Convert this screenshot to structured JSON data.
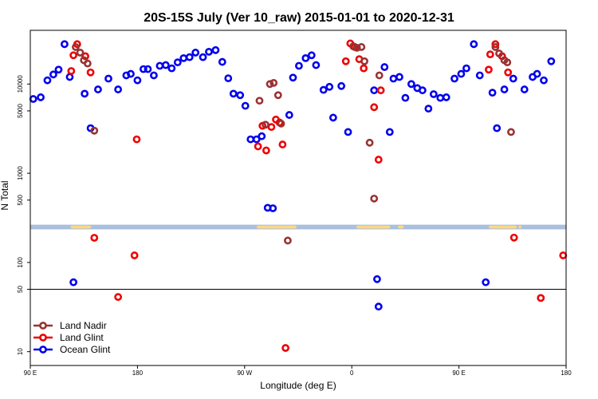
{
  "chart_data": {
    "type": "scatter",
    "title": "20S-15S July (Ver 10_raw)   2015-01-01 to 2020-12-31",
    "xlabel": "Longitude (deg E)",
    "ylabel": "N Total",
    "xlim": [
      90,
      450
    ],
    "ylim": [
      7,
      40000
    ],
    "y_scale": "log",
    "grid": false,
    "legend_placement": "bottom-left",
    "x_ticks": [
      {
        "value": 90,
        "label": "90 E"
      },
      {
        "value": 162,
        "label": "180"
      },
      {
        "value": 234,
        "label": "90 W"
      },
      {
        "value": 306,
        "label": "0"
      },
      {
        "value": 378,
        "label": "90 E"
      },
      {
        "value": 450,
        "label": "180"
      }
    ],
    "y_ticks": [
      {
        "value": 10,
        "label": "10"
      },
      {
        "value": 50,
        "label": "50"
      },
      {
        "value": 100,
        "label": "100"
      },
      {
        "value": 500,
        "label": "500"
      },
      {
        "value": 1000,
        "label": "1000"
      },
      {
        "value": 5000,
        "label": "5000"
      },
      {
        "value": 10000,
        "label": "10000"
      }
    ],
    "reference_line_y": 50,
    "land_sea_band": {
      "y_range": [
        235,
        265
      ],
      "ocean_color": "#a9bfdd",
      "land_color": "#fcd882",
      "land_x_ranges": [
        [
          117,
          131
        ],
        [
          242,
          269
        ],
        [
          309,
          332
        ],
        [
          337,
          341
        ],
        [
          398,
          417
        ],
        [
          418,
          420
        ]
      ]
    },
    "series": [
      {
        "name": "Land Nadir",
        "color": "#993333",
        "points": [
          [
            120.5,
            26000
          ],
          [
            123.5,
            22500
          ],
          [
            126,
            18500
          ],
          [
            128.5,
            17000
          ],
          [
            133,
            3000
          ],
          [
            244,
            6500
          ],
          [
            248,
            3500
          ],
          [
            251,
            10000
          ],
          [
            253.5,
            10300
          ],
          [
            256.5,
            7500
          ],
          [
            258.5,
            3600
          ],
          [
            263,
            176
          ],
          [
            307,
            26500
          ],
          [
            309.5,
            25500
          ],
          [
            312.5,
            26000
          ],
          [
            314.5,
            18000
          ],
          [
            318,
            2200
          ],
          [
            321,
            520
          ],
          [
            324.5,
            12500
          ],
          [
            402.5,
            26000
          ],
          [
            405,
            22000
          ],
          [
            408.5,
            18500
          ],
          [
            410.5,
            17500
          ],
          [
            413,
            2900
          ]
        ]
      },
      {
        "name": "Land Glint",
        "color": "#ee0000",
        "points": [
          [
            117.5,
            14000
          ],
          [
            119,
            21000
          ],
          [
            121.5,
            28000
          ],
          [
            127,
            20500
          ],
          [
            130.5,
            13500
          ],
          [
            133,
            189
          ],
          [
            149,
            41
          ],
          [
            160,
            120
          ],
          [
            161.5,
            2400
          ],
          [
            243,
            2000
          ],
          [
            246,
            3400
          ],
          [
            248.5,
            1800
          ],
          [
            252,
            3300
          ],
          [
            255,
            4000
          ],
          [
            257.5,
            3700
          ],
          [
            259.5,
            2100
          ],
          [
            261.5,
            11
          ],
          [
            302,
            18000
          ],
          [
            305,
            28500
          ],
          [
            308,
            26000
          ],
          [
            311,
            19000
          ],
          [
            314,
            15000
          ],
          [
            321,
            5500
          ],
          [
            324,
            1420
          ],
          [
            325.5,
            8500
          ],
          [
            398,
            14500
          ],
          [
            399,
            21500
          ],
          [
            402.5,
            28000
          ],
          [
            407,
            20500
          ],
          [
            411,
            13500
          ],
          [
            415,
            190
          ],
          [
            433,
            40
          ],
          [
            448,
            120
          ]
        ]
      },
      {
        "name": "Ocean Glint",
        "color": "#0000ee",
        "points": [
          [
            92,
            6800
          ],
          [
            97,
            7100
          ],
          [
            101.5,
            11000
          ],
          [
            105.5,
            12800
          ],
          [
            109,
            14500
          ],
          [
            113,
            28000
          ],
          [
            116.5,
            12000
          ],
          [
            119,
            60
          ],
          [
            126.5,
            7800
          ],
          [
            130.5,
            3200
          ],
          [
            135.5,
            8700
          ],
          [
            142.5,
            11500
          ],
          [
            149,
            8700
          ],
          [
            154.5,
            12500
          ],
          [
            157.5,
            13000
          ],
          [
            162,
            11000
          ],
          [
            166,
            14700
          ],
          [
            169,
            14700
          ],
          [
            173,
            12500
          ],
          [
            177,
            16000
          ],
          [
            181,
            16300
          ],
          [
            185,
            15000
          ],
          [
            189,
            17500
          ],
          [
            193,
            19500
          ],
          [
            197,
            20000
          ],
          [
            201,
            22500
          ],
          [
            206,
            20000
          ],
          [
            210,
            23000
          ],
          [
            214.5,
            24000
          ],
          [
            219,
            17700
          ],
          [
            223,
            11600
          ],
          [
            226.5,
            7800
          ],
          [
            231,
            7500
          ],
          [
            234.5,
            5700
          ],
          [
            238,
            2400
          ],
          [
            242,
            2400
          ],
          [
            245.5,
            2600
          ],
          [
            249.5,
            410
          ],
          [
            253,
            405
          ],
          [
            264,
            4500
          ],
          [
            266.5,
            11800
          ],
          [
            270.5,
            16000
          ],
          [
            275,
            19500
          ],
          [
            279,
            21000
          ],
          [
            282,
            16300
          ],
          [
            287,
            8600
          ],
          [
            291,
            9300
          ],
          [
            293.5,
            4200
          ],
          [
            299,
            9500
          ],
          [
            303.5,
            2900
          ],
          [
            321,
            8500
          ],
          [
            323,
            65
          ],
          [
            324,
            32
          ],
          [
            328,
            15500
          ],
          [
            331.5,
            2900
          ],
          [
            334,
            11500
          ],
          [
            338,
            12000
          ],
          [
            342,
            7000
          ],
          [
            346,
            10000
          ],
          [
            350,
            9000
          ],
          [
            353.5,
            8500
          ],
          [
            357.5,
            5300
          ],
          [
            361,
            7700
          ],
          [
            365.5,
            7000
          ],
          [
            369.5,
            7100
          ],
          [
            375,
            11500
          ],
          [
            379.5,
            13000
          ],
          [
            383,
            15000
          ],
          [
            388,
            28000
          ],
          [
            392,
            12500
          ],
          [
            396,
            60
          ],
          [
            400.5,
            8000
          ],
          [
            403.5,
            3200
          ],
          [
            408.5,
            8700
          ],
          [
            414.5,
            11500
          ],
          [
            422,
            8700
          ],
          [
            427.5,
            12000
          ],
          [
            430.5,
            13000
          ],
          [
            435,
            11000
          ],
          [
            440,
            18000
          ]
        ]
      }
    ]
  }
}
